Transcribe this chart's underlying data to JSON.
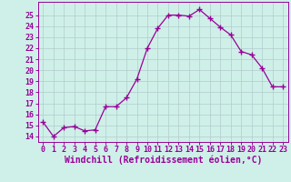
{
  "x": [
    0,
    1,
    2,
    3,
    4,
    5,
    6,
    7,
    8,
    9,
    10,
    11,
    12,
    13,
    14,
    15,
    16,
    17,
    18,
    19,
    20,
    21,
    22,
    23
  ],
  "y": [
    15.3,
    14.0,
    14.8,
    14.9,
    14.5,
    14.6,
    16.7,
    16.7,
    17.5,
    19.2,
    22.0,
    23.8,
    25.0,
    25.0,
    24.9,
    25.5,
    24.7,
    23.9,
    23.2,
    21.7,
    21.4,
    20.2,
    18.5,
    18.5
  ],
  "line_color": "#990099",
  "bg_color": "#cff0e8",
  "grid_color": "#b0cccc",
  "xlabel": "Windchill (Refroidissement éolien,°C)",
  "ylim": [
    13.5,
    26.2
  ],
  "xlim": [
    -0.5,
    23.5
  ],
  "yticks": [
    14,
    15,
    16,
    17,
    18,
    19,
    20,
    21,
    22,
    23,
    24,
    25
  ],
  "xticks": [
    0,
    1,
    2,
    3,
    4,
    5,
    6,
    7,
    8,
    9,
    10,
    11,
    12,
    13,
    14,
    15,
    16,
    17,
    18,
    19,
    20,
    21,
    22,
    23
  ],
  "marker": "+",
  "markersize": 4,
  "linewidth": 0.9,
  "xlabel_fontsize": 7,
  "tick_fontsize": 6
}
